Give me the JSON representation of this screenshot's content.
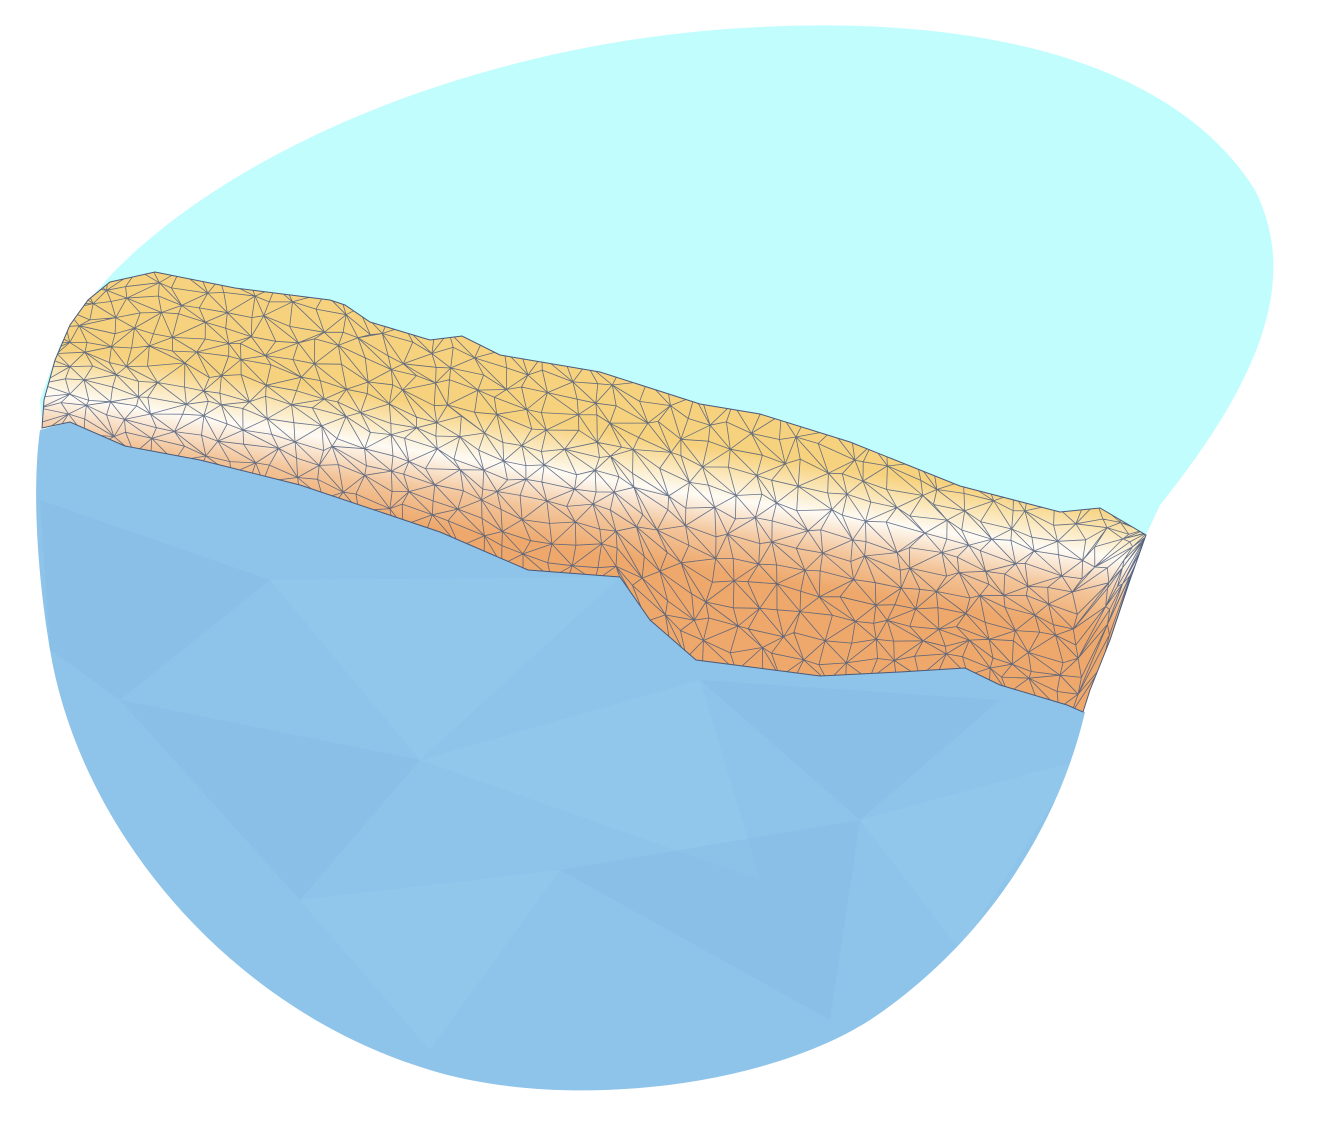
{
  "scene": {
    "background": "#ffffff",
    "colors": {
      "upper_region": "#c1fdfd",
      "lower_region": "#8ec4ea",
      "lower_facet_light": "#96ccf0",
      "lower_facet_dark": "#86bce4",
      "band_top": "#f7d27e",
      "band_mid": "#fefbf4",
      "band_edge": "#f3c59a",
      "band_bottom": "#eea86c",
      "mesh_lines": "#4a5a7a"
    }
  }
}
